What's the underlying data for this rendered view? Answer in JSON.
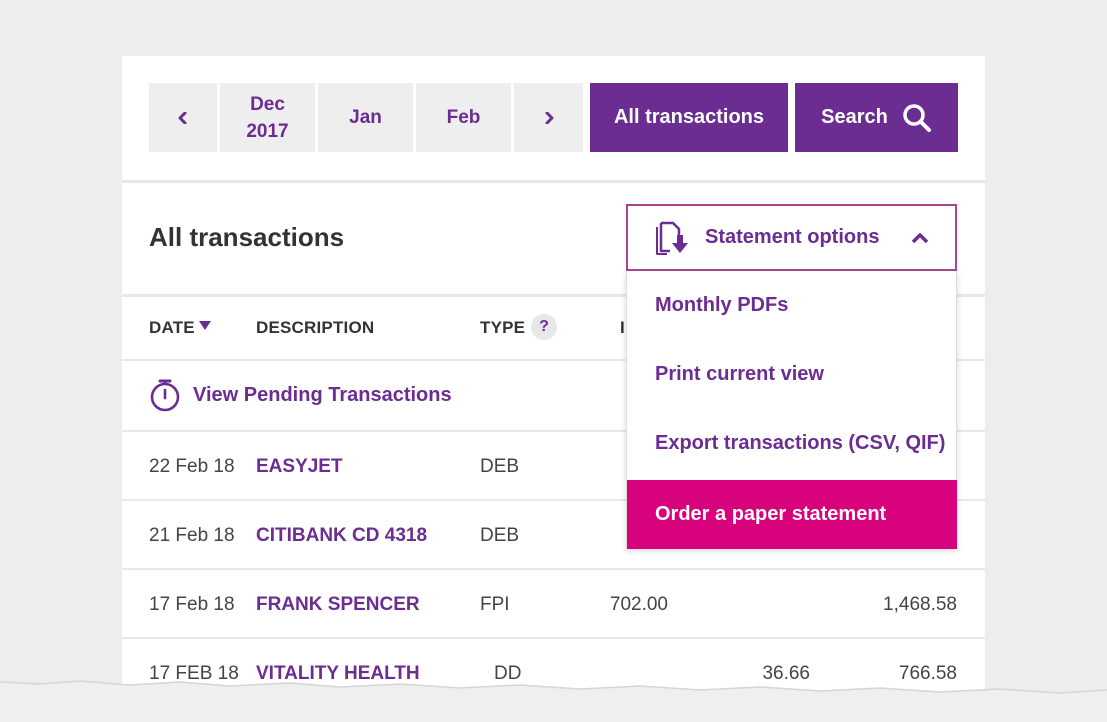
{
  "toolbar": {
    "prev_icon": "chevron-left-icon",
    "months": [
      {
        "line1": "Dec",
        "line2": "2017"
      },
      {
        "line1": "Jan",
        "line2": ""
      },
      {
        "line1": "Feb",
        "line2": ""
      }
    ],
    "next_icon": "chevron-right-icon",
    "all_transactions_label": "All transactions",
    "search_label": "Search",
    "search_icon": "search-icon"
  },
  "section": {
    "title": "All transactions",
    "statement_options_label": "Statement options",
    "statement_icon": "document-download-icon",
    "caret_icon": "chevron-up-icon"
  },
  "columns": {
    "date": "DATE",
    "description": "DESCRIPTION",
    "type": "TYPE",
    "help": "?",
    "in_partial": "I"
  },
  "pending": {
    "label": "View Pending Transactions",
    "icon": "stopwatch-icon"
  },
  "rows": [
    {
      "date": "22 Feb 18",
      "description": "EASYJET",
      "type": "DEB",
      "in": "",
      "out": "",
      "balance": ""
    },
    {
      "date": "21 Feb 18",
      "description": "CITIBANK CD 4318",
      "type": "DEB",
      "in": "",
      "out": "",
      "balance": ""
    },
    {
      "date": "17 Feb 18",
      "description": "FRANK SPENCER",
      "type": "FPI",
      "in": "702.00",
      "out": "",
      "balance": "1,468.58"
    },
    {
      "date": "17 FEB 18",
      "description": "VITALITY HEALTH",
      "type": "DD",
      "in": "",
      "out": "36.66",
      "balance": "766.58"
    }
  ],
  "dropdown": {
    "items": [
      "Monthly PDFs",
      "Print current view",
      "Export transactions (CSV, QIF)",
      "Order a paper statement"
    ],
    "active_index": 3
  },
  "colors": {
    "brand_purple": "#6b2d91",
    "accent_magenta": "#d9027d",
    "background": "#ededed"
  }
}
